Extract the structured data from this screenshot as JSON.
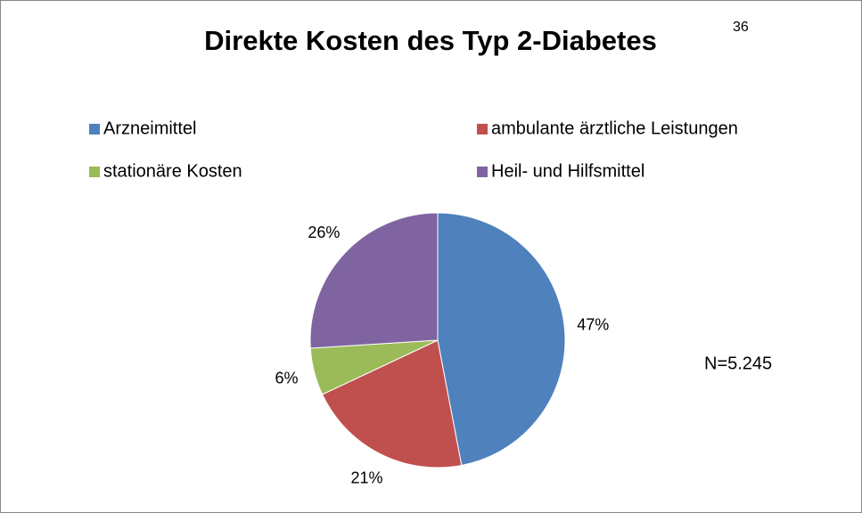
{
  "chart_data": {
    "type": "pie",
    "title": "Direkte Kosten des Typ 2-Diabetes",
    "title_superscript": "36",
    "categories": [
      "Arzneimittel",
      "ambulante ärztliche Leistungen",
      "stationäre Kosten",
      "Heil- und Hilfsmittel"
    ],
    "values": [
      47,
      21,
      6,
      26
    ],
    "value_labels": [
      "47%",
      "21%",
      "6%",
      "26%"
    ],
    "colors": [
      "#4f81bd",
      "#c0504d",
      "#9bbb59",
      "#8064a2"
    ],
    "annotation": "N=5.245",
    "legend": "top"
  }
}
